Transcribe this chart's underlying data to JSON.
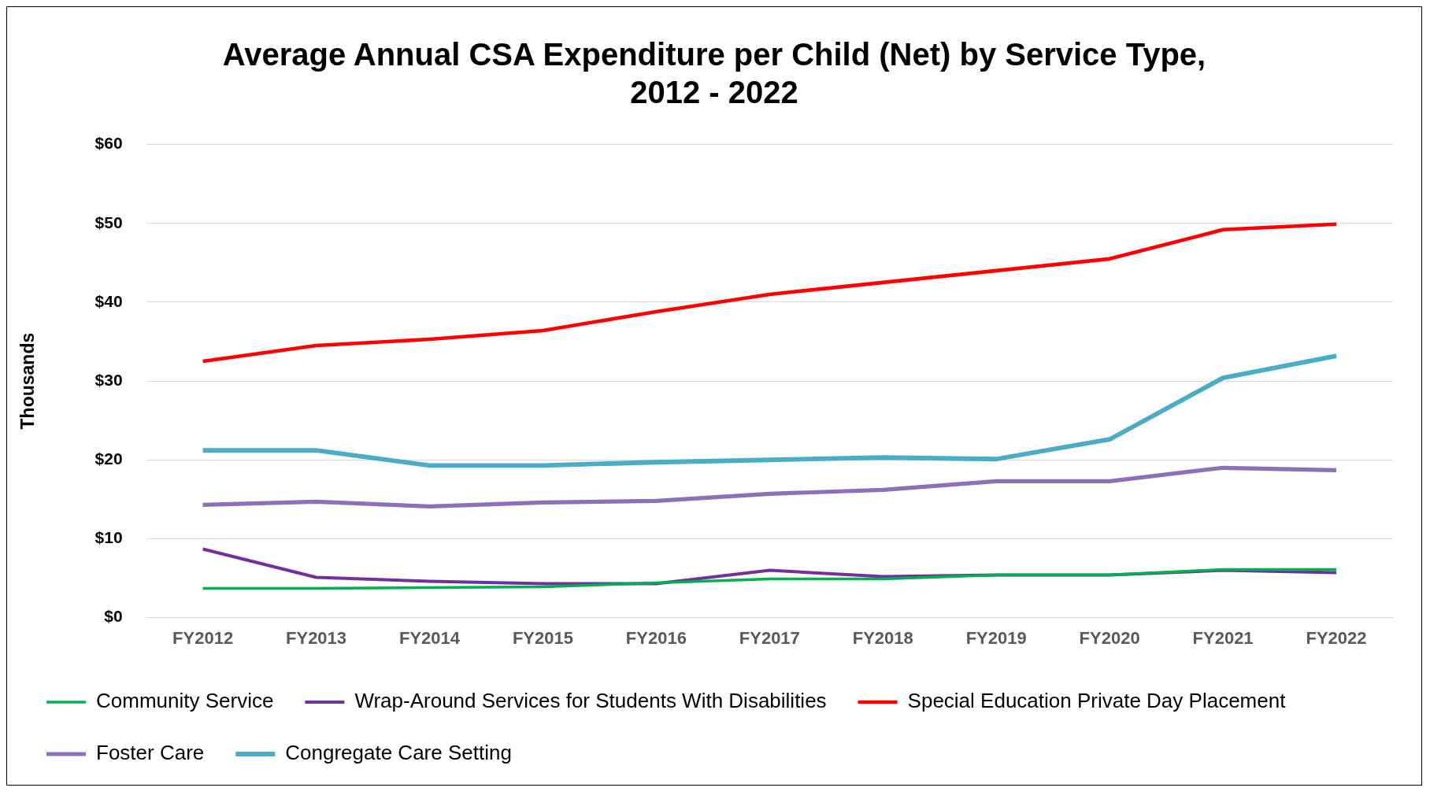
{
  "chart_data": {
    "type": "line",
    "title": "Average Annual CSA Expenditure per Child (Net) by Service Type, 2012 - 2022",
    "ylabel": "Thousands",
    "categories": [
      "FY2012",
      "FY2013",
      "FY2014",
      "FY2015",
      "FY2016",
      "FY2017",
      "FY2018",
      "FY2019",
      "FY2020",
      "FY2021",
      "FY2022"
    ],
    "series": [
      {
        "name": "Community Service",
        "color": "#00b050",
        "values": [
          3.7,
          3.7,
          3.8,
          3.9,
          4.4,
          4.9,
          4.9,
          5.4,
          5.4,
          6.1,
          6.1
        ]
      },
      {
        "name": "Wrap-Around Services for Students With Disabilities",
        "color": "#7030a0",
        "values": [
          8.7,
          5.1,
          4.6,
          4.3,
          4.3,
          6.0,
          5.2,
          5.4,
          5.4,
          6.0,
          5.7
        ]
      },
      {
        "name": "Special Education Private Day Placement",
        "color": "#ff0000",
        "values": [
          32.5,
          34.5,
          35.3,
          36.4,
          38.8,
          41.0,
          42.5,
          44.0,
          45.5,
          49.2,
          49.9
        ]
      },
      {
        "name": "Foster Care",
        "color": "#8e6fb8",
        "values": [
          14.3,
          14.7,
          14.1,
          14.6,
          14.8,
          15.7,
          16.2,
          17.3,
          17.3,
          19.0,
          18.7
        ]
      },
      {
        "name": "Congregate Care Setting",
        "color": "#4bacc6",
        "values": [
          21.2,
          21.2,
          19.3,
          19.3,
          19.7,
          20.0,
          20.3,
          20.1,
          22.6,
          30.4,
          33.2
        ]
      }
    ],
    "ylim": [
      0,
      60
    ],
    "yticks": [
      {
        "value": 0,
        "label": "$0"
      },
      {
        "value": 10,
        "label": "$10"
      },
      {
        "value": 20,
        "label": "$20"
      },
      {
        "value": 30,
        "label": "$30"
      },
      {
        "value": 40,
        "label": "$40"
      },
      {
        "value": 50,
        "label": "$50"
      },
      {
        "value": 60,
        "label": "$60"
      }
    ],
    "grid": "y",
    "legend": "bottom",
    "marker": "none",
    "line_style": "solid"
  }
}
